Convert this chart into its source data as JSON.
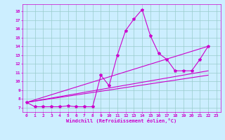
{
  "xlabel": "Windchill (Refroidissement éolien,°C)",
  "background_color": "#cceeff",
  "line_color": "#cc00cc",
  "grid_color": "#99cccc",
  "xlim": [
    -0.5,
    23.5
  ],
  "ylim": [
    6.5,
    18.8
  ],
  "xticks": [
    0,
    1,
    2,
    3,
    4,
    5,
    6,
    7,
    8,
    9,
    10,
    11,
    12,
    13,
    14,
    15,
    16,
    17,
    18,
    19,
    20,
    21,
    22,
    23
  ],
  "yticks": [
    7,
    8,
    9,
    10,
    11,
    12,
    13,
    14,
    15,
    16,
    17,
    18
  ],
  "line1_x": [
    0,
    1,
    2,
    3,
    4,
    5,
    6,
    7,
    8,
    9,
    10,
    11,
    12,
    13,
    14,
    15,
    16,
    17,
    18,
    19,
    20,
    21,
    22
  ],
  "line1_y": [
    7.6,
    7.1,
    7.1,
    7.1,
    7.1,
    7.2,
    7.1,
    7.1,
    7.1,
    10.7,
    9.5,
    13.0,
    15.8,
    17.1,
    18.2,
    15.2,
    13.2,
    12.5,
    11.2,
    11.2,
    11.2,
    12.5,
    14.0
  ],
  "line2_x": [
    0,
    22
  ],
  "line2_y": [
    7.6,
    14.0
  ],
  "line3_x": [
    0,
    22
  ],
  "line3_y": [
    7.6,
    11.2
  ],
  "line4_x": [
    0,
    22
  ],
  "line4_y": [
    7.6,
    10.7
  ]
}
